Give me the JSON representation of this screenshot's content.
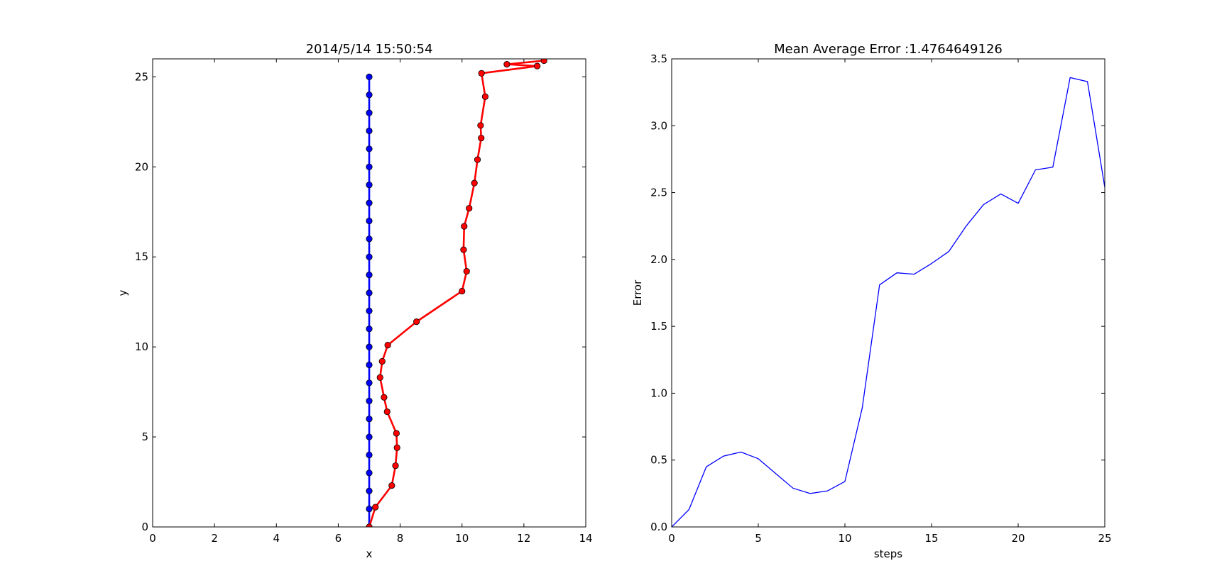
{
  "chart_data": [
    {
      "type": "line",
      "title": "2014/5/14  15:50:54",
      "xlabel": "x",
      "ylabel": "y",
      "xlim": [
        0,
        14
      ],
      "ylim": [
        0,
        26
      ],
      "xticks": [
        "0",
        "2",
        "4",
        "6",
        "8",
        "10",
        "12",
        "14"
      ],
      "yticks": [
        "0",
        "5",
        "10",
        "15",
        "20",
        "25"
      ],
      "xtick_values": [
        0,
        2,
        4,
        6,
        8,
        10,
        12,
        14
      ],
      "ytick_values": [
        0,
        5,
        10,
        15,
        20,
        25
      ],
      "grid": false,
      "series": [
        {
          "color": "#0000ff",
          "marker": "circle",
          "x": [
            7,
            7,
            7,
            7,
            7,
            7,
            7,
            7,
            7,
            7,
            7,
            7,
            7,
            7,
            7,
            7,
            7,
            7,
            7,
            7,
            7,
            7,
            7,
            7,
            7,
            7
          ],
          "y": [
            0,
            1,
            2,
            3,
            4,
            5,
            6,
            7,
            8,
            9,
            10,
            11,
            12,
            13,
            14,
            15,
            16,
            17,
            18,
            19,
            20,
            21,
            22,
            23,
            24,
            25
          ]
        },
        {
          "color": "#ff0000",
          "marker": "circle",
          "x": [
            7.0,
            7.2,
            7.73,
            7.85,
            7.9,
            7.88,
            7.58,
            7.48,
            7.35,
            7.42,
            7.6,
            8.53,
            10.0,
            10.15,
            10.05,
            10.07,
            10.23,
            10.4,
            10.5,
            10.62,
            10.6,
            10.75,
            10.63,
            12.43,
            11.45,
            12.65
          ],
          "y": [
            0,
            1.1,
            2.3,
            3.4,
            4.4,
            5.2,
            6.4,
            7.2,
            8.3,
            9.2,
            10.1,
            11.4,
            13.1,
            14.2,
            15.4,
            16.7,
            17.7,
            19.1,
            20.4,
            21.6,
            22.3,
            23.9,
            25.2,
            25.6,
            25.7,
            25.9
          ]
        }
      ]
    },
    {
      "type": "line",
      "title": "Mean Average Error :1.4764649126",
      "xlabel": "steps",
      "ylabel": "Error",
      "xlim": [
        0,
        25
      ],
      "ylim": [
        0,
        3.5
      ],
      "xticks": [
        "0",
        "5",
        "10",
        "15",
        "20",
        "25"
      ],
      "yticks": [
        "0.0",
        "0.5",
        "1.0",
        "1.5",
        "2.0",
        "2.5",
        "3.0",
        "3.5"
      ],
      "xtick_values": [
        0,
        5,
        10,
        15,
        20,
        25
      ],
      "ytick_values": [
        0,
        0.5,
        1.0,
        1.5,
        2.0,
        2.5,
        3.0,
        3.5
      ],
      "grid": false,
      "series": [
        {
          "color": "#0000ff",
          "marker": "none",
          "x": [
            0,
            1,
            2,
            3,
            4,
            5,
            6,
            7,
            8,
            9,
            10,
            11,
            12,
            13,
            14,
            15,
            16,
            17,
            18,
            19,
            20,
            21,
            22,
            23,
            24,
            25
          ],
          "y": [
            0.0,
            0.13,
            0.45,
            0.53,
            0.56,
            0.51,
            0.4,
            0.29,
            0.25,
            0.27,
            0.34,
            0.89,
            1.81,
            1.9,
            1.89,
            1.97,
            2.06,
            2.25,
            2.41,
            2.49,
            2.42,
            2.67,
            2.69,
            3.36,
            3.33,
            2.54
          ]
        }
      ]
    }
  ]
}
